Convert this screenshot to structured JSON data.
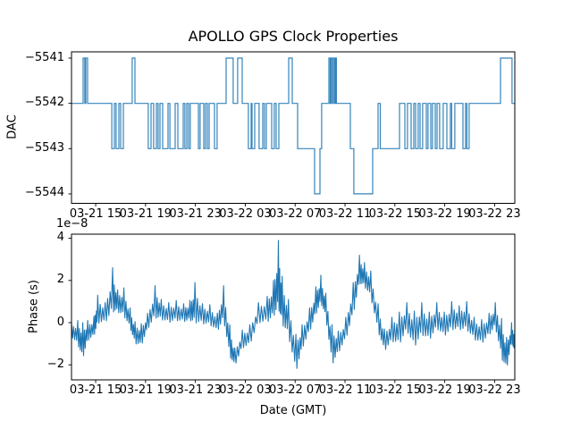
{
  "figure": {
    "title": "APOLLO GPS Clock Properties",
    "background_color": "#ffffff",
    "line_color": "#1f77b4",
    "frame_color": "#000000",
    "text_color": "#000000"
  },
  "chart_data": [
    {
      "type": "line",
      "subplot": "top",
      "title": "APOLLO GPS Clock Properties",
      "ylabel": "DAC",
      "line_style": "step-post",
      "grid": false,
      "legend": null,
      "y_tick_labels": [
        "−5541",
        "−5542",
        "−5543",
        "−5544"
      ],
      "y_tick_values": [
        -5541,
        -5542,
        -5543,
        -5544
      ],
      "ylim": [
        -5544.22,
        -5540.86
      ],
      "x_tick_labels": [
        "03-21 15",
        "03-21 19",
        "03-21 23",
        "03-22 03",
        "03-22 07",
        "03-22 11",
        "03-22 15",
        "03-22 19",
        "03-22 23"
      ],
      "x_tick_hours": [
        1.94,
        5.94,
        9.94,
        13.94,
        17.94,
        21.94,
        25.94,
        29.94,
        33.94
      ],
      "xlim_hours": [
        0,
        35.56
      ],
      "steps": [
        [
          0,
          -5542
        ],
        [
          0.93,
          -5541
        ],
        [
          1.07,
          -5542
        ],
        [
          1.15,
          -5541
        ],
        [
          1.29,
          -5542
        ],
        [
          3.23,
          -5543
        ],
        [
          3.44,
          -5542
        ],
        [
          3.58,
          -5543
        ],
        [
          3.8,
          -5542
        ],
        [
          3.94,
          -5543
        ],
        [
          4.16,
          -5542
        ],
        [
          4.87,
          -5541
        ],
        [
          5.09,
          -5542
        ],
        [
          6.16,
          -5543
        ],
        [
          6.38,
          -5542
        ],
        [
          6.59,
          -5543
        ],
        [
          6.81,
          -5542
        ],
        [
          6.95,
          -5543
        ],
        [
          7.1,
          -5542
        ],
        [
          7.31,
          -5543
        ],
        [
          7.74,
          -5542
        ],
        [
          7.89,
          -5543
        ],
        [
          8.32,
          -5542
        ],
        [
          8.53,
          -5543
        ],
        [
          8.96,
          -5542
        ],
        [
          9.1,
          -5543
        ],
        [
          9.25,
          -5542
        ],
        [
          9.39,
          -5543
        ],
        [
          9.53,
          -5542
        ],
        [
          10.18,
          -5543
        ],
        [
          10.32,
          -5542
        ],
        [
          10.61,
          -5543
        ],
        [
          10.75,
          -5542
        ],
        [
          10.9,
          -5543
        ],
        [
          11.04,
          -5542
        ],
        [
          11.47,
          -5543
        ],
        [
          11.68,
          -5542
        ],
        [
          12.4,
          -5541
        ],
        [
          12.97,
          -5542
        ],
        [
          13.33,
          -5541
        ],
        [
          13.69,
          -5542
        ],
        [
          14.19,
          -5543
        ],
        [
          14.41,
          -5542
        ],
        [
          14.48,
          -5543
        ],
        [
          14.7,
          -5542
        ],
        [
          15.05,
          -5543
        ],
        [
          15.34,
          -5542
        ],
        [
          15.48,
          -5543
        ],
        [
          15.63,
          -5542
        ],
        [
          16.06,
          -5543
        ],
        [
          16.27,
          -5542
        ],
        [
          16.42,
          -5543
        ],
        [
          16.63,
          -5542
        ],
        [
          17.42,
          -5541
        ],
        [
          17.71,
          -5542
        ],
        [
          18.14,
          -5543
        ],
        [
          19.5,
          -5544
        ],
        [
          19.93,
          -5543
        ],
        [
          20.07,
          -5542
        ],
        [
          20.65,
          -5541
        ],
        [
          20.75,
          -5542
        ],
        [
          20.82,
          -5541
        ],
        [
          20.93,
          -5542
        ],
        [
          21.0,
          -5541
        ],
        [
          21.11,
          -5542
        ],
        [
          21.18,
          -5541
        ],
        [
          21.25,
          -5542
        ],
        [
          22.37,
          -5543
        ],
        [
          22.65,
          -5544
        ],
        [
          24.16,
          -5543
        ],
        [
          24.59,
          -5542
        ],
        [
          24.77,
          -5543
        ],
        [
          26.31,
          -5542
        ],
        [
          26.74,
          -5543
        ],
        [
          26.95,
          -5542
        ],
        [
          27.24,
          -5543
        ],
        [
          27.46,
          -5542
        ],
        [
          27.6,
          -5543
        ],
        [
          27.81,
          -5542
        ],
        [
          27.96,
          -5543
        ],
        [
          28.17,
          -5542
        ],
        [
          28.46,
          -5543
        ],
        [
          28.6,
          -5542
        ],
        [
          28.82,
          -5543
        ],
        [
          28.96,
          -5542
        ],
        [
          29.18,
          -5543
        ],
        [
          29.32,
          -5542
        ],
        [
          29.53,
          -5543
        ],
        [
          29.82,
          -5542
        ],
        [
          30.11,
          -5543
        ],
        [
          30.39,
          -5542
        ],
        [
          30.5,
          -5543
        ],
        [
          30.75,
          -5542
        ],
        [
          31.4,
          -5543
        ],
        [
          31.61,
          -5542
        ],
        [
          31.72,
          -5543
        ],
        [
          31.9,
          -5542
        ],
        [
          34.41,
          -5541
        ],
        [
          35.34,
          -5542
        ]
      ]
    },
    {
      "type": "line",
      "subplot": "bottom",
      "ylabel": "Phase (s)",
      "xlabel": "Date (GMT)",
      "offset_text": "1e−8",
      "units": "1e-8 s",
      "grid": false,
      "legend": null,
      "y_tick_labels": [
        "4",
        "2",
        "0",
        "−2"
      ],
      "y_tick_values": [
        4,
        2,
        0,
        -2
      ],
      "ylim": [
        -2.72,
        4.19
      ],
      "x_tick_labels": [
        "03-21 15",
        "03-21 19",
        "03-21 23",
        "03-22 03",
        "03-22 07",
        "03-22 11",
        "03-22 15",
        "03-22 19",
        "03-22 23"
      ],
      "x_tick_hours": [
        1.94,
        5.94,
        9.94,
        13.94,
        17.94,
        21.94,
        25.94,
        29.94,
        33.94
      ],
      "xlim_hours": [
        0,
        35.56
      ],
      "noise_pattern": [
        1.0,
        -0.9,
        0.5,
        -0.8,
        0.35,
        -0.65
      ],
      "envelope": [
        [
          0,
          -0.35,
          0.35
        ],
        [
          0.5,
          -0.5,
          0.6
        ],
        [
          0.9,
          -0.9,
          0.9
        ],
        [
          1.3,
          -0.4,
          0.5
        ],
        [
          1.8,
          -0.2,
          0.5
        ],
        [
          2.1,
          0.6,
          0.7
        ],
        [
          2.7,
          0.45,
          0.5
        ],
        [
          3.3,
          1.5,
          1.1
        ],
        [
          3.7,
          1.0,
          0.55
        ],
        [
          4.2,
          0.95,
          0.7
        ],
        [
          4.7,
          0.2,
          0.5
        ],
        [
          5.1,
          -0.5,
          0.55
        ],
        [
          5.6,
          -0.6,
          0.55
        ],
        [
          6.1,
          0.05,
          0.4
        ],
        [
          6.7,
          0.95,
          0.8
        ],
        [
          7.2,
          0.6,
          0.5
        ],
        [
          7.8,
          0.45,
          0.5
        ],
        [
          8.4,
          0.55,
          0.5
        ],
        [
          9.0,
          0.45,
          0.45
        ],
        [
          9.5,
          0.55,
          0.5
        ],
        [
          9.9,
          0.9,
          1.0
        ],
        [
          10.5,
          0.4,
          0.5
        ],
        [
          11.1,
          0.35,
          0.5
        ],
        [
          11.7,
          0.0,
          0.45
        ],
        [
          12.2,
          0.9,
          0.85
        ],
        [
          12.7,
          -0.9,
          0.8
        ],
        [
          13.1,
          -1.65,
          0.45
        ],
        [
          13.7,
          -0.8,
          0.45
        ],
        [
          14.3,
          -0.6,
          0.5
        ],
        [
          15.0,
          0.45,
          0.5
        ],
        [
          15.7,
          0.6,
          0.65
        ],
        [
          16.2,
          1.1,
          0.9
        ],
        [
          16.6,
          2.2,
          1.7
        ],
        [
          16.9,
          1.0,
          1.2
        ],
        [
          17.4,
          0.2,
          0.9
        ],
        [
          18.0,
          -1.5,
          0.95
        ],
        [
          18.5,
          -0.7,
          0.6
        ],
        [
          19.1,
          0.1,
          0.6
        ],
        [
          19.6,
          1.0,
          0.7
        ],
        [
          20.0,
          1.55,
          0.7
        ],
        [
          20.4,
          0.8,
          0.6
        ],
        [
          20.9,
          -1.1,
          1.0
        ],
        [
          21.4,
          -0.95,
          0.55
        ],
        [
          22.0,
          -0.3,
          0.55
        ],
        [
          22.6,
          1.1,
          0.8
        ],
        [
          23.1,
          2.5,
          0.7
        ],
        [
          23.5,
          2.25,
          0.6
        ],
        [
          24.0,
          1.8,
          0.65
        ],
        [
          24.6,
          0.2,
          0.7
        ],
        [
          25.1,
          -0.85,
          0.55
        ],
        [
          25.7,
          -0.35,
          0.6
        ],
        [
          26.3,
          -0.3,
          0.8
        ],
        [
          26.9,
          0.25,
          0.7
        ],
        [
          27.5,
          -0.35,
          0.9
        ],
        [
          28.1,
          0.15,
          0.8
        ],
        [
          28.7,
          -0.2,
          0.7
        ],
        [
          29.3,
          0.3,
          0.65
        ],
        [
          29.9,
          -0.1,
          0.6
        ],
        [
          30.5,
          0.3,
          0.7
        ],
        [
          31.1,
          0.2,
          0.6
        ],
        [
          31.7,
          0.3,
          0.7
        ],
        [
          32.3,
          -0.3,
          0.55
        ],
        [
          32.9,
          -0.45,
          0.6
        ],
        [
          33.5,
          -0.1,
          0.55
        ],
        [
          34.0,
          0.35,
          0.6
        ],
        [
          34.5,
          -0.8,
          1.0
        ],
        [
          34.9,
          -1.5,
          0.8
        ],
        [
          35.3,
          -0.5,
          0.5
        ],
        [
          35.56,
          -0.9,
          0.6
        ]
      ]
    }
  ]
}
